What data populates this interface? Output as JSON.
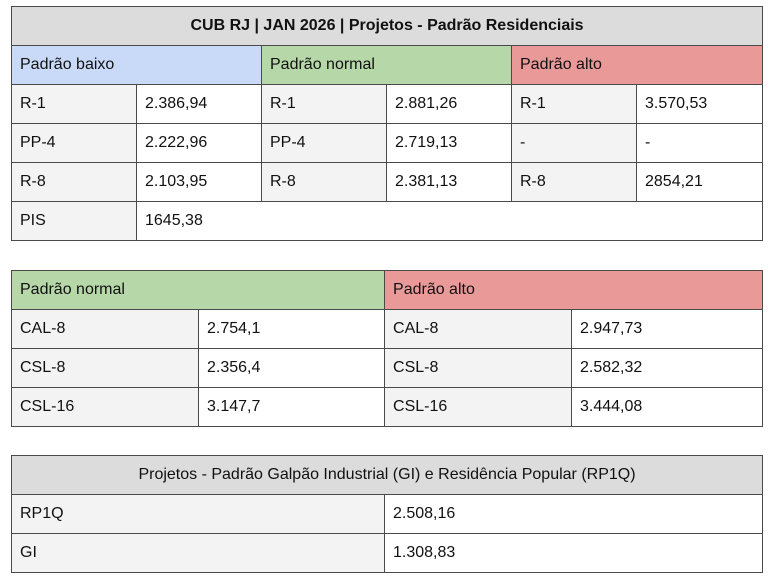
{
  "table1": {
    "title": "CUB RJ | JAN 2026 | Projetos - Padrão Residenciais",
    "headers": {
      "baixo": "Padrão baixo",
      "normal": "Padrão normal",
      "alto": "Padrão alto"
    },
    "rows": [
      [
        "R-1",
        "2.386,94",
        "R-1",
        "2.881,26",
        "R-1",
        "3.570,53"
      ],
      [
        "PP-4",
        "2.222,96",
        "PP-4",
        "2.719,13",
        "-",
        "-"
      ],
      [
        "R-8",
        "2.103,95",
        "R-8",
        "2.381,13",
        "R-8",
        "2854,21"
      ],
      [
        "PIS",
        "1645,38"
      ]
    ]
  },
  "table2": {
    "headers": {
      "normal": "Padrão normal",
      "alto": "Padrão alto"
    },
    "rows": [
      [
        "CAL-8",
        "2.754,1",
        "CAL-8",
        "2.947,73"
      ],
      [
        "CSL-8",
        "2.356,4",
        "CSL-8",
        "2.582,32"
      ],
      [
        "CSL-16",
        "3.147,7",
        "CSL-16",
        "3.444,08"
      ]
    ]
  },
  "table3": {
    "title": "Projetos - Padrão Galpão Industrial (GI) e Residência Popular (RP1Q)",
    "rows": [
      [
        "RP1Q",
        "2.508,16"
      ],
      [
        "GI",
        "1.308,83"
      ]
    ]
  },
  "colors": {
    "title_bg": "#dcdcdc",
    "padrao_baixo": "#c9daf8",
    "padrao_normal": "#b6d7a8",
    "padrao_alto": "#ea9999",
    "label_bg": "#f3f3f3"
  }
}
